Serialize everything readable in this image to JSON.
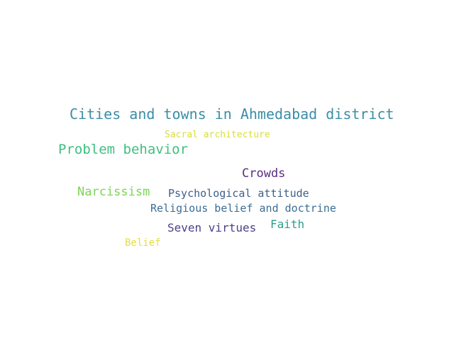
{
  "words": [
    {
      "text": "Cities and towns in Ahmedabad district",
      "color": "#3b8ea5"
    },
    {
      "text": "Sacral architecture",
      "color": "#d9de3a"
    },
    {
      "text": "Problem behavior",
      "color": "#3fbf7f"
    },
    {
      "text": "Crowds",
      "color": "#5a2d82"
    },
    {
      "text": "Narcissism",
      "color": "#7ed35a"
    },
    {
      "text": "Psychological attitude",
      "color": "#3e5f8a"
    },
    {
      "text": "Religious belief and doctrine",
      "color": "#3a6e96"
    },
    {
      "text": "Faith",
      "color": "#2aa08a"
    },
    {
      "text": "Seven virtues",
      "color": "#4b3f8a"
    },
    {
      "text": "Belief",
      "color": "#e6de3c"
    }
  ]
}
